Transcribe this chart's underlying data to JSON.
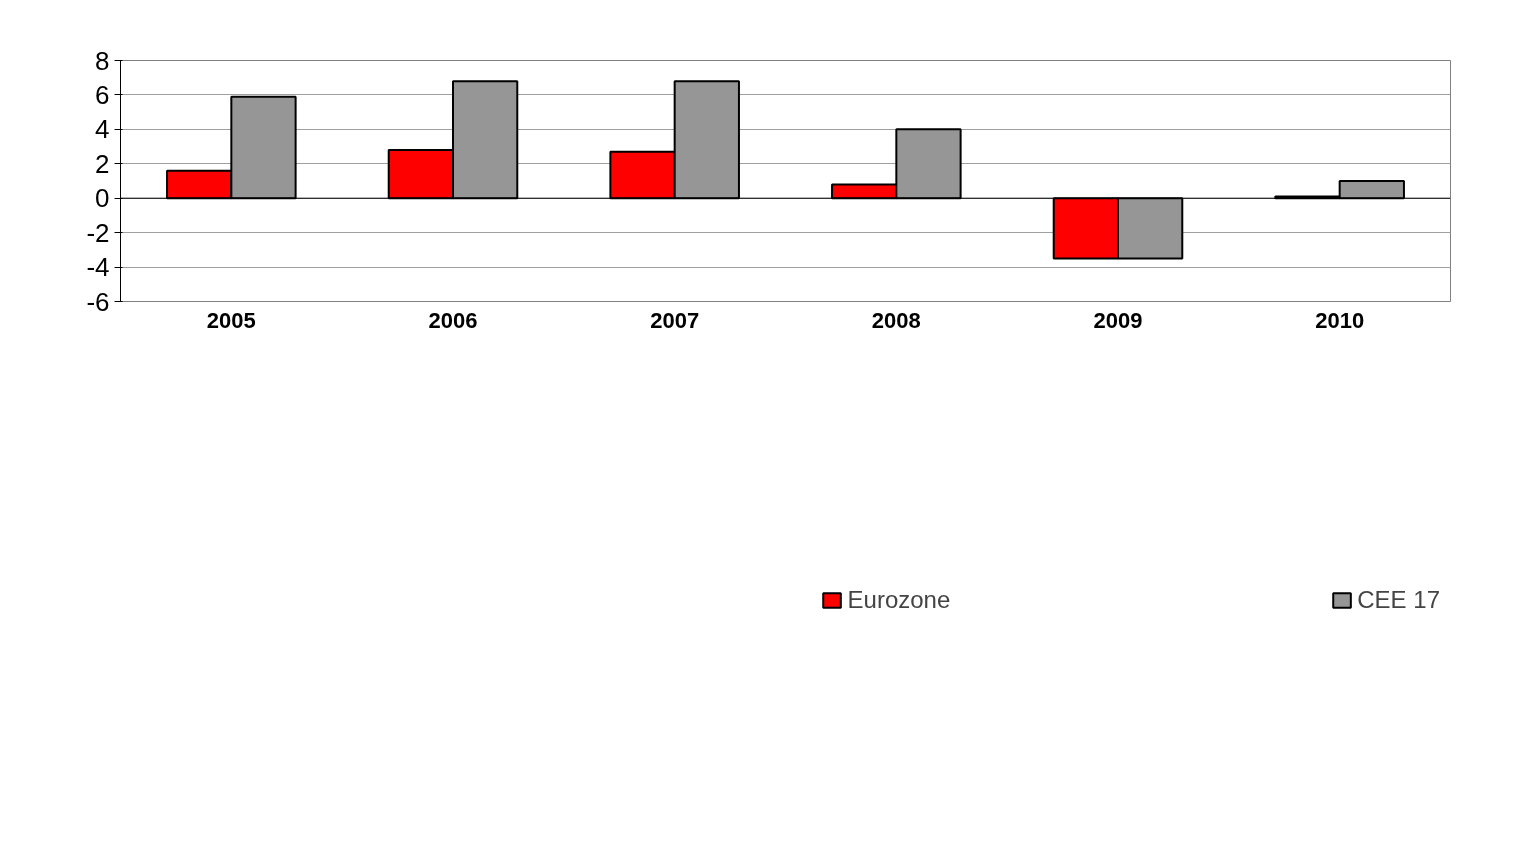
{
  "chart_data": {
    "type": "bar",
    "categories": [
      "2005",
      "2006",
      "2007",
      "2008",
      "2009",
      "2010"
    ],
    "series": [
      {
        "name": "Eurozone",
        "color": "#ff0000",
        "values": [
          1.6,
          2.8,
          2.7,
          0.8,
          -3.5,
          0.1
        ]
      },
      {
        "name": "CEE 17",
        "color": "#969696",
        "values": [
          5.9,
          6.8,
          6.8,
          4.0,
          -3.5,
          1.0
        ]
      }
    ],
    "ylim": [
      -6,
      8
    ],
    "yticks": [
      -6,
      -4,
      -2,
      0,
      2,
      4,
      6,
      8
    ],
    "grid": "y",
    "legend": "bottom"
  }
}
